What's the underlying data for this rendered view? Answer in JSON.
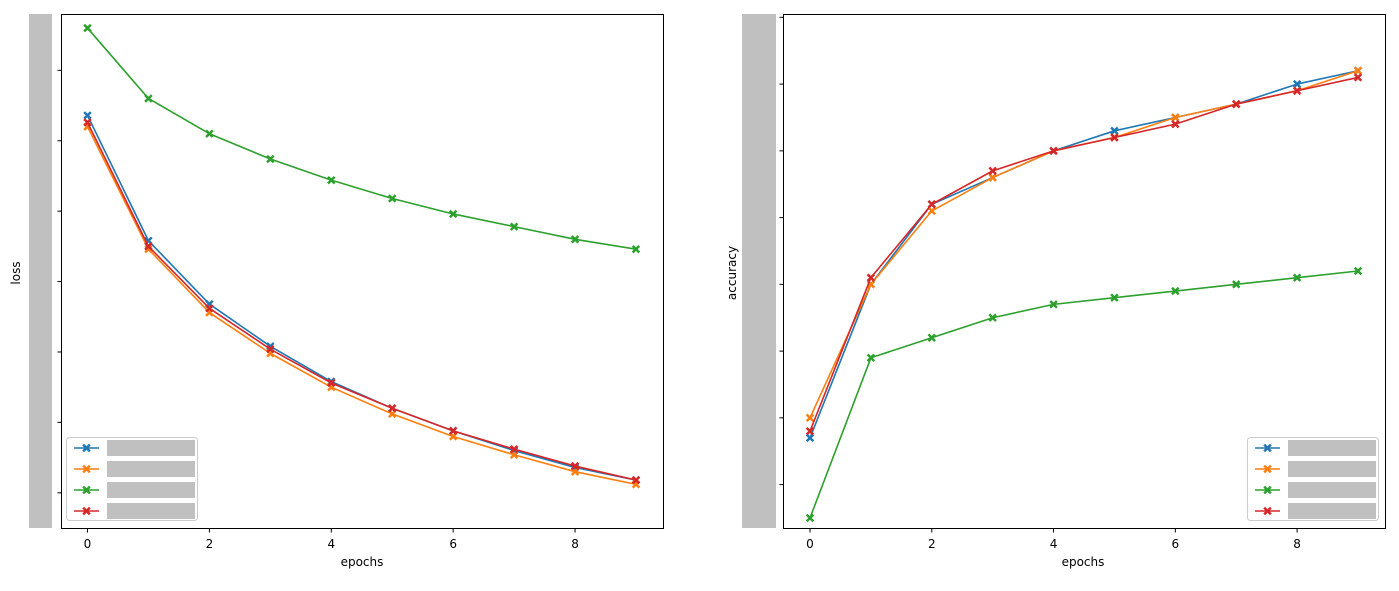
{
  "chart_data": [
    {
      "type": "line",
      "xlabel": "epochs",
      "ylabel": "loss",
      "x": [
        0,
        1,
        2,
        3,
        4,
        5,
        6,
        7,
        8,
        9
      ],
      "xticks": [
        "0",
        "2",
        "4",
        "6",
        "8"
      ],
      "ylim": [
        0.25,
        3.9
      ],
      "y_tick_values": [
        0.5,
        1.0,
        1.5,
        2.0,
        2.5,
        3.0,
        3.5
      ],
      "y_tick_labels_hidden": true,
      "legend": {
        "position": "lower-left",
        "labels_hidden": true
      },
      "marker": "X",
      "series": [
        {
          "color": "#1f77b4",
          "values": [
            3.18,
            2.29,
            1.84,
            1.54,
            1.29,
            1.1,
            0.94,
            0.8,
            0.68,
            0.59
          ]
        },
        {
          "color": "#ff7f0e",
          "values": [
            3.1,
            2.23,
            1.78,
            1.49,
            1.25,
            1.06,
            0.9,
            0.77,
            0.65,
            0.56
          ]
        },
        {
          "color": "#2ca02c",
          "values": [
            3.8,
            3.3,
            3.05,
            2.87,
            2.72,
            2.59,
            2.48,
            2.39,
            2.3,
            2.23
          ]
        },
        {
          "color": "#d62728",
          "values": [
            3.13,
            2.25,
            1.81,
            1.52,
            1.28,
            1.1,
            0.94,
            0.81,
            0.69,
            0.59
          ]
        }
      ]
    },
    {
      "type": "line",
      "xlabel": "epochs",
      "ylabel": "accuracy",
      "x": [
        0,
        1,
        2,
        3,
        4,
        5,
        6,
        7,
        8,
        9
      ],
      "xticks": [
        "0",
        "2",
        "4",
        "6",
        "8"
      ],
      "ylim": [
        0.135,
        0.905
      ],
      "y_tick_values": [
        0.2,
        0.3,
        0.4,
        0.5,
        0.6,
        0.7,
        0.8,
        0.9
      ],
      "y_tick_labels_hidden": true,
      "legend": {
        "position": "lower-right",
        "labels_hidden": true
      },
      "marker": "X",
      "series": [
        {
          "color": "#1f77b4",
          "values": [
            0.27,
            0.5,
            0.62,
            0.66,
            0.7,
            0.73,
            0.75,
            0.77,
            0.8,
            0.82
          ]
        },
        {
          "color": "#ff7f0e",
          "values": [
            0.3,
            0.5,
            0.61,
            0.66,
            0.7,
            0.72,
            0.75,
            0.77,
            0.79,
            0.82
          ]
        },
        {
          "color": "#2ca02c",
          "values": [
            0.15,
            0.39,
            0.42,
            0.45,
            0.47,
            0.48,
            0.49,
            0.5,
            0.51,
            0.52
          ]
        },
        {
          "color": "#d62728",
          "values": [
            0.28,
            0.51,
            0.62,
            0.67,
            0.7,
            0.72,
            0.74,
            0.77,
            0.79,
            0.81
          ]
        }
      ]
    }
  ]
}
